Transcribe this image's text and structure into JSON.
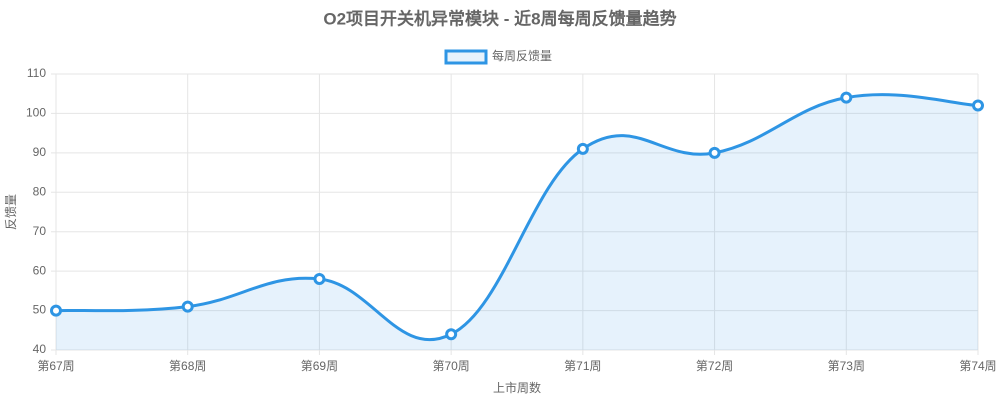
{
  "chart_data": {
    "type": "line",
    "title": "O2项目开关机异常模块 - 近8周每周反馈量趋势",
    "x_label": "上市周数",
    "y_label": "反馈量",
    "categories": [
      "第67周",
      "第68周",
      "第69周",
      "第70周",
      "第71周",
      "第72周",
      "第73周",
      "第74周"
    ],
    "series": [
      {
        "name": "每周反馈量",
        "color": "#2e95e4",
        "values": [
          50,
          51,
          58,
          44,
          91,
          90,
          104,
          102
        ]
      }
    ],
    "ylim": [
      40,
      110
    ],
    "yticks": [
      40,
      50,
      60,
      70,
      80,
      90,
      100,
      110
    ],
    "grid": true,
    "legend": "top"
  }
}
